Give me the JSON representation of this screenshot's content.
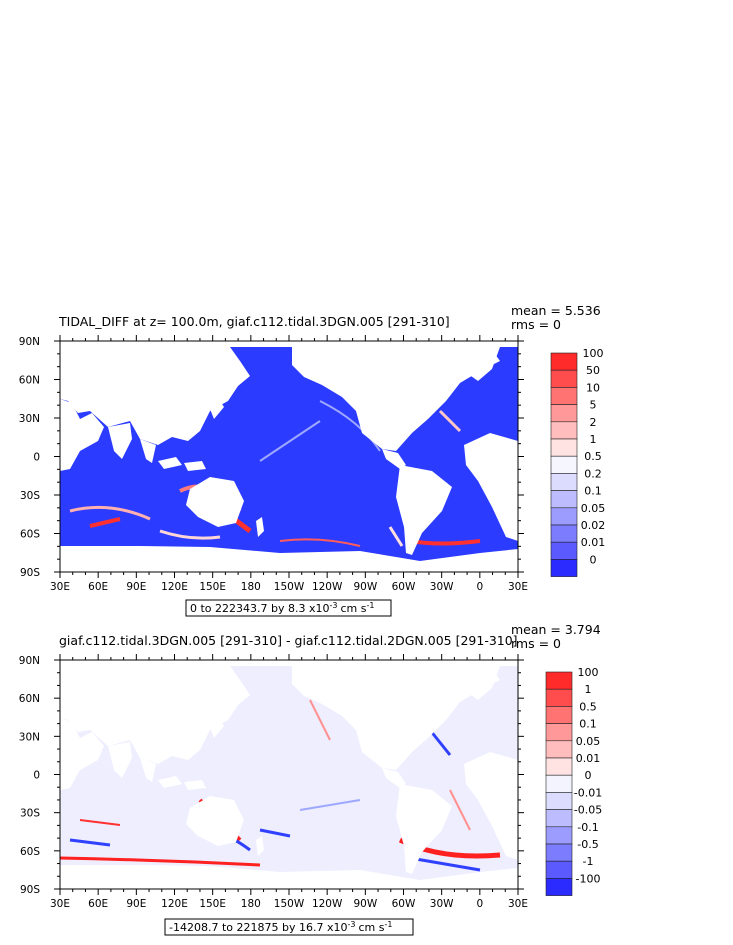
{
  "colors": {
    "ocean_blue": "#2b3bff",
    "land": "#ffffff",
    "frame": "#000000"
  },
  "chart_data": [
    {
      "type": "heatmap",
      "title": "TIDAL_DIFF at z= 100.0m, giaf.c112.tidal.3DGN.005 [291-310]",
      "stats": [
        "mean = 5.536",
        "rms = 0"
      ],
      "xticks": [
        "30E",
        "60E",
        "90E",
        "120E",
        "150E",
        "180",
        "150W",
        "120W",
        "90W",
        "60W",
        "30W",
        "0",
        "30E"
      ],
      "yticks": [
        "90N",
        "60N",
        "30N",
        "0",
        "30S",
        "60S",
        "90S"
      ],
      "xlim": [
        30,
        390
      ],
      "ylim": [
        -90,
        90
      ],
      "range_text": "0 to 222343.7 by 8.3 x10",
      "range_exp": "-3",
      "range_unit": "cm s",
      "range_unit_exp": "-1",
      "legend_labels": [
        "100",
        "50",
        "10",
        "5",
        "2",
        "1",
        "0.5",
        "0.2",
        "0.1",
        "0.05",
        "0.02",
        "0.01",
        "0"
      ],
      "legend_colors": [
        "#ff2b2b",
        "#ff4d4d",
        "#ff7373",
        "#ff9999",
        "#ffbdbd",
        "#ffe3e3",
        "#f6f6ff",
        "#dcdcff",
        "#bcbcff",
        "#9c9cff",
        "#7c7cff",
        "#5a5aff",
        "#2b2bff"
      ]
    },
    {
      "type": "heatmap",
      "title": "giaf.c112.tidal.3DGN.005 [291-310] - giaf.c112.tidal.2DGN.005 [291-310]",
      "stats": [
        "mean = 3.794",
        "rms = 0"
      ],
      "xticks": [
        "30E",
        "60E",
        "90E",
        "120E",
        "150E",
        "180",
        "150W",
        "120W",
        "90W",
        "60W",
        "30W",
        "0",
        "30E"
      ],
      "yticks": [
        "90N",
        "60N",
        "30N",
        "0",
        "30S",
        "60S",
        "90S"
      ],
      "xlim": [
        30,
        390
      ],
      "ylim": [
        -90,
        90
      ],
      "range_text": "-14208.7 to 221875 by 16.7 x10",
      "range_exp": "-3",
      "range_unit": "cm s",
      "range_unit_exp": "-1",
      "legend_labels": [
        "100",
        "1",
        "0.5",
        "0.1",
        "0.05",
        "0.01",
        "0",
        "-0.01",
        "-0.05",
        "-0.1",
        "-0.5",
        "-1",
        "-100"
      ],
      "legend_colors": [
        "#ff2b2b",
        "#ff4d4d",
        "#ff7373",
        "#ff9999",
        "#ffbdbd",
        "#ffe3e3",
        "#f4f4ff",
        "#dcdcff",
        "#bcbcff",
        "#9c9cff",
        "#7c7cff",
        "#5a5aff",
        "#2b2bff"
      ]
    }
  ]
}
